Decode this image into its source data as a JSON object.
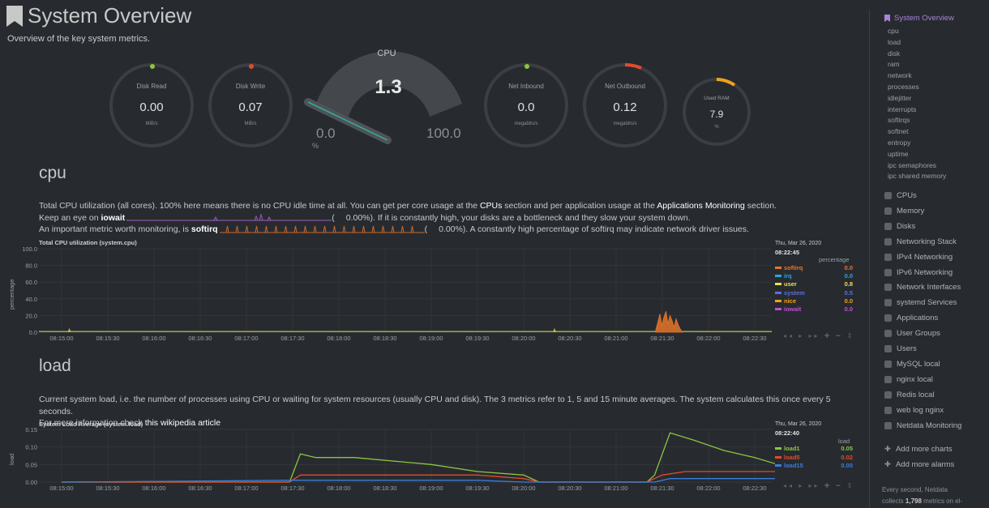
{
  "page": {
    "title": "System Overview",
    "subtitle": "Overview of the key system metrics."
  },
  "gauges": [
    {
      "label": "Disk Read",
      "value": "0.00",
      "unit": "MiB/s",
      "dot_color": "#8cc63f"
    },
    {
      "label": "Disk Write",
      "value": "0.07",
      "unit": "MiB/s",
      "dot_color": "#e44a2a"
    },
    {
      "label": "Net Inbound",
      "value": "0.0",
      "unit": "megabits/s",
      "dot_color": "#8cc63f"
    },
    {
      "label": "Net Outbound",
      "value": "0.12",
      "unit": "megabits/s",
      "dot_color": "#e44a2a"
    },
    {
      "label": "Used RAM",
      "value": "7.9",
      "unit": "%",
      "dot_color": "#f0a21b"
    }
  ],
  "cpu_gauge": {
    "title": "CPU",
    "value": "1.3",
    "min": "0.0",
    "max": "100.0",
    "unit": "%",
    "fraction": 0.013
  },
  "cpu_section": {
    "heading": "cpu",
    "line1_a": "Total CPU utilization (all cores). 100% here means there is no CPU idle time at all. You can get per core usage at the ",
    "line1_link1": "CPUs",
    "line1_b": " section and per application usage at the ",
    "line1_link2": "Applications Monitoring",
    "line1_c": " section.",
    "line2_a": "Keep an eye on ",
    "line2_b": "iowait",
    "line2_c": "(",
    "line2_d": "0.00%). If it is constantly high, your disks are a bottleneck and they slow your system down.",
    "line3_a": "An important metric worth monitoring, is ",
    "line3_b": "softirq",
    "line3_c": "(",
    "line3_d": "0.00%). A constantly high percentage of softirq may indicate network driver issues."
  },
  "load_section": {
    "heading": "load",
    "line1": "Current system load, i.e. the number of processes using CPU or waiting for system resources (usually CPU and disk). The 3 metrics refer to 1, 5 and 15 minute averages. The system calculates this once every 5 seconds.",
    "line2_a": "For more information check ",
    "line2_link": "this wikipedia article"
  },
  "chart_data": [
    {
      "type": "area",
      "title": "Total CPU utilization (system.cpu)",
      "ylabel": "percentage",
      "ylim": [
        0,
        100
      ],
      "y_ticks": [
        "100.0",
        "80.0",
        "60.0",
        "40.0",
        "20.0",
        "0.0"
      ],
      "x_ticks": [
        "08:15:00",
        "08:15:30",
        "08:16:00",
        "08:16:30",
        "08:17:00",
        "08:17:30",
        "08:18:00",
        "08:18:30",
        "08:19:00",
        "08:19:30",
        "08:20:00",
        "08:20:30",
        "08:21:00",
        "08:21:30",
        "08:22:00",
        "08:22:30"
      ],
      "legend_date": "Thu, Mar 26, 2020",
      "legend_time": "08:22:45",
      "legend_unit": "percentage",
      "series": [
        {
          "name": "softirq",
          "value": "0.0",
          "color": "#e7742b"
        },
        {
          "name": "irq",
          "value": "0.0",
          "color": "#2aa5d8"
        },
        {
          "name": "user",
          "value": "0.8",
          "color": "#e6e24a"
        },
        {
          "name": "system",
          "value": "0.5",
          "color": "#5b6ee1"
        },
        {
          "name": "nice",
          "value": "0.0",
          "color": "#f0a21b"
        },
        {
          "name": "iowait",
          "value": "0.0",
          "color": "#c44fd3"
        }
      ],
      "spike_times": [
        "08:15:05",
        "08:20:20",
        "08:21:30",
        "08:21:40"
      ]
    },
    {
      "type": "line",
      "title": "System Load Average (system.load)",
      "ylabel": "load",
      "ylim": [
        0,
        0.15
      ],
      "y_ticks": [
        "0.15",
        "0.10",
        "0.05",
        "0.00"
      ],
      "x_ticks": [
        "08:15:00",
        "08:15:30",
        "08:16:00",
        "08:16:30",
        "08:17:00",
        "08:17:30",
        "08:18:00",
        "08:18:30",
        "08:19:00",
        "08:19:30",
        "08:20:00",
        "08:20:30",
        "08:21:00",
        "08:21:30",
        "08:22:00",
        "08:22:30"
      ],
      "legend_date": "Thu, Mar 26, 2020",
      "legend_time": "08:22:40",
      "legend_unit": "load",
      "series": [
        {
          "name": "load1",
          "value": "0.05",
          "color": "#8cc63f"
        },
        {
          "name": "load5",
          "value": "0.02",
          "color": "#e44a2a"
        },
        {
          "name": "load15",
          "value": "0.00",
          "color": "#3a7dd8"
        }
      ]
    }
  ],
  "sidebar": {
    "active": "System Overview",
    "sub_items": [
      "cpu",
      "load",
      "disk",
      "ram",
      "network",
      "processes",
      "idlejitter",
      "interrupts",
      "softirqs",
      "softnet",
      "entropy",
      "uptime",
      "ipc semaphores",
      "ipc shared memory"
    ],
    "main_items": [
      "CPUs",
      "Memory",
      "Disks",
      "Networking Stack",
      "IPv4 Networking",
      "IPv6 Networking",
      "Network Interfaces",
      "systemd Services",
      "Applications",
      "User Groups",
      "Users",
      "MySQL local",
      "nginx local",
      "Redis local",
      "web log nginx",
      "Netdata Monitoring"
    ],
    "actions": [
      "Add more charts",
      "Add more alarms"
    ],
    "footer_line1": "Every second, Netdata",
    "footer_line2_a": "collects ",
    "footer_line2_b": "1,798",
    "footer_line2_c": " metrics on el-"
  },
  "colors": {
    "background": "#272b30",
    "accent": "#a984d9",
    "gauge_track": "#3b3f44"
  }
}
